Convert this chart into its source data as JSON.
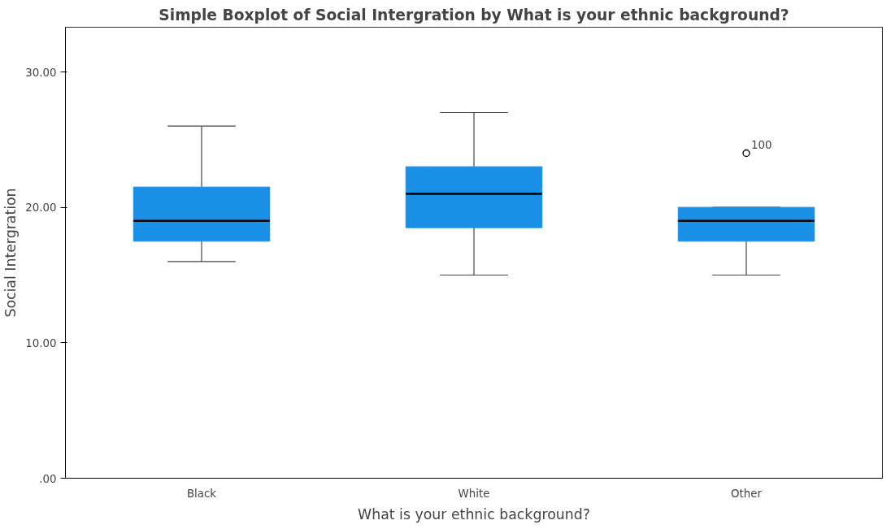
{
  "chart_data": {
    "type": "box",
    "title": "Simple Boxplot of Social Intergration by What is your ethnic background?",
    "xlabel": "What is your ethnic background?",
    "ylabel": "Social Intergration",
    "categories": [
      "Black",
      "White",
      "Other"
    ],
    "series": [
      {
        "color": "#1a8fe6",
        "boxes": [
          {
            "low": 16,
            "q1": 17.5,
            "median": 19,
            "q3": 21.5,
            "high": 26
          },
          {
            "low": 15,
            "q1": 18.5,
            "median": 21,
            "q3": 23,
            "high": 27
          },
          {
            "low": 15,
            "q1": 17.5,
            "median": 19,
            "q3": 20,
            "high": 20,
            "outliers": [
              24
            ]
          }
        ]
      }
    ],
    "ylim": [
      0,
      33.3
    ],
    "yticks": [
      {
        "value": 0,
        "label": ".00"
      },
      {
        "value": 10,
        "label": "10.00"
      },
      {
        "value": 20,
        "label": "20.00"
      },
      {
        "value": 30,
        "label": "30.00"
      }
    ],
    "annotations": [
      "100"
    ],
    "grid": false
  }
}
